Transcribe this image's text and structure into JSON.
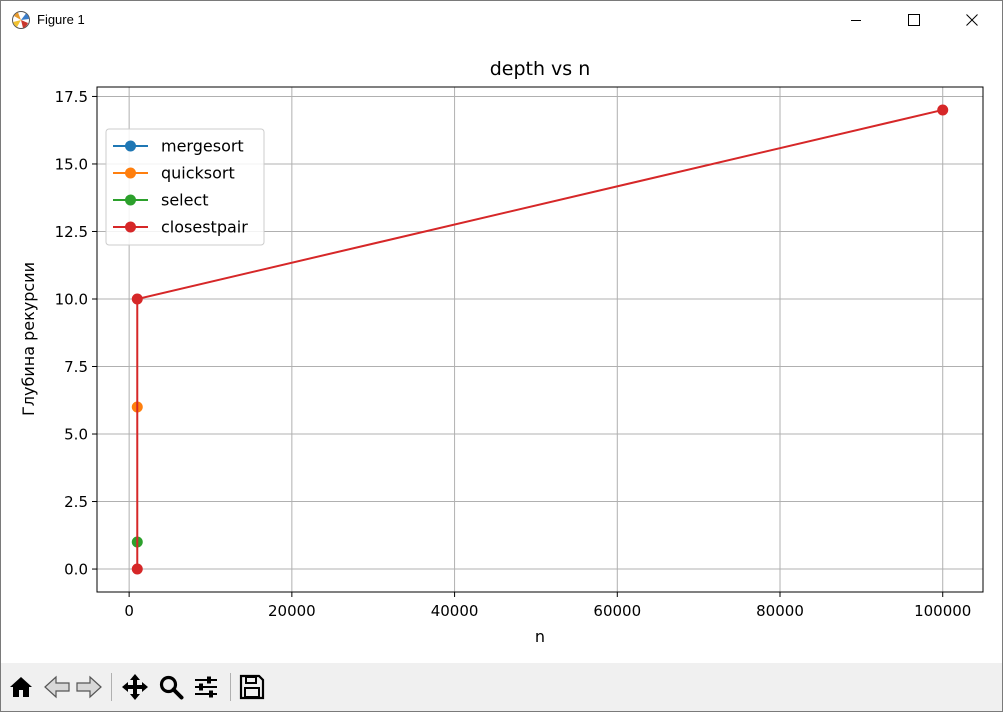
{
  "window": {
    "title": "Figure 1",
    "controls": {
      "minimize": "minimize",
      "maximize": "maximize",
      "close": "close"
    }
  },
  "toolbar": {
    "buttons": [
      {
        "name": "home-button",
        "icon": "home-icon"
      },
      {
        "name": "back-button",
        "icon": "back-arrow-icon"
      },
      {
        "name": "forward-button",
        "icon": "forward-arrow-icon"
      },
      {
        "name": "pan-button",
        "icon": "move-icon"
      },
      {
        "name": "zoom-button",
        "icon": "magnifier-icon"
      },
      {
        "name": "configure-subplots-button",
        "icon": "sliders-icon"
      },
      {
        "name": "save-button",
        "icon": "floppy-disk-icon"
      }
    ]
  },
  "chart_data": {
    "type": "line",
    "title": "depth vs n",
    "xlabel": "n",
    "ylabel": "Глубина рекурсии",
    "xlim": [
      -3950,
      104950
    ],
    "ylim": [
      -0.85,
      17.85
    ],
    "xticks": [
      0,
      20000,
      40000,
      60000,
      80000,
      100000
    ],
    "xtick_labels": [
      "0",
      "20000",
      "40000",
      "60000",
      "80000",
      "100000"
    ],
    "yticks": [
      0,
      2.5,
      5,
      7.5,
      10,
      12.5,
      15,
      17.5
    ],
    "ytick_labels": [
      "0.0",
      "2.5",
      "5.0",
      "7.5",
      "10.0",
      "12.5",
      "15.0",
      "17.5"
    ],
    "grid": true,
    "legend_position": "upper-left",
    "series": [
      {
        "name": "mergesort",
        "color": "#1f77b4",
        "x": [
          1000,
          1000
        ],
        "y": [
          10,
          17
        ],
        "hidden": true
      },
      {
        "name": "quicksort",
        "color": "#ff7f0e",
        "x": [
          1000
        ],
        "y": [
          6
        ]
      },
      {
        "name": "select",
        "color": "#2ca02c",
        "x": [
          1000
        ],
        "y": [
          1
        ]
      },
      {
        "name": "closestpair",
        "color": "#d62728",
        "x": [
          1000,
          1000,
          100000
        ],
        "y": [
          0,
          10,
          17
        ]
      }
    ]
  }
}
